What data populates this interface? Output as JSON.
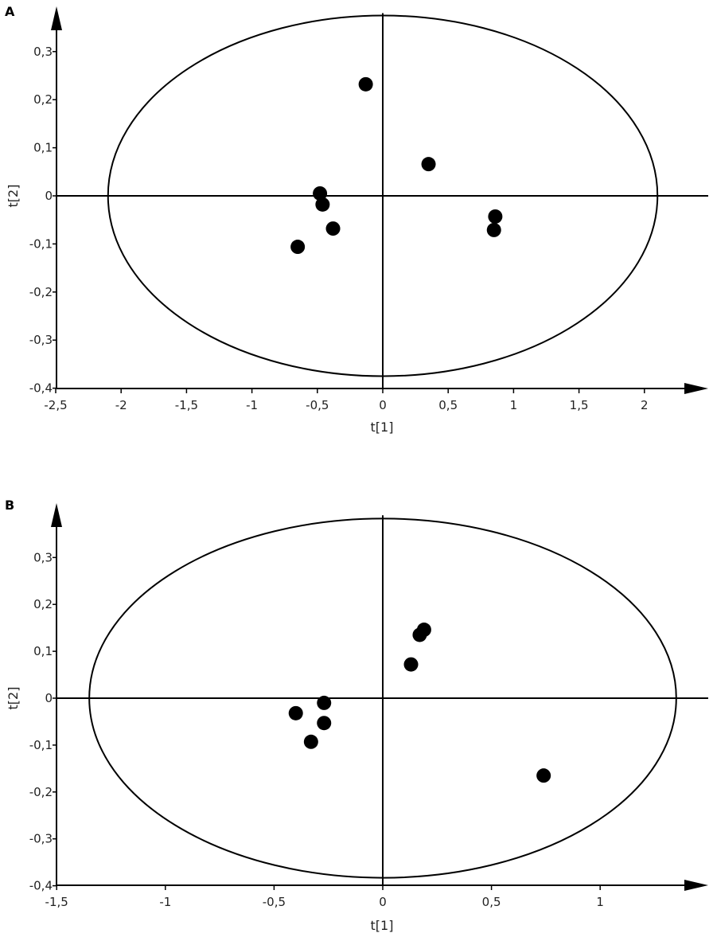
{
  "chart_data": [
    {
      "type": "scatter",
      "panel_label": "A",
      "xlabel": "t[1]",
      "ylabel": "t[2]",
      "xlim": [
        -2.5,
        2.3
      ],
      "ylim": [
        -0.4,
        0.38
      ],
      "xticks": [
        "-2,5",
        "-2",
        "-1,5",
        "-1",
        "-0,5",
        "0",
        "0,5",
        "1",
        "1,5",
        "2"
      ],
      "xtick_values": [
        -2.5,
        -2,
        -1.5,
        -1,
        -0.5,
        0,
        0.5,
        1,
        1.5,
        2
      ],
      "yticks": [
        "-0,4",
        "-0,3",
        "-0,2",
        "-0,1",
        "0",
        "0,1",
        "0,2",
        "0,3"
      ],
      "ytick_values": [
        -0.4,
        -0.3,
        -0.2,
        -0.1,
        0,
        0.1,
        0.2,
        0.3
      ],
      "ellipse": {
        "rx": 2.1,
        "ry": 0.375
      },
      "points": [
        {
          "x": -0.13,
          "y": 0.232
        },
        {
          "x": 0.35,
          "y": 0.066
        },
        {
          "x": -0.48,
          "y": 0.005
        },
        {
          "x": -0.46,
          "y": -0.018
        },
        {
          "x": -0.38,
          "y": -0.068
        },
        {
          "x": -0.65,
          "y": -0.106
        },
        {
          "x": 0.86,
          "y": -0.043
        },
        {
          "x": 0.85,
          "y": -0.071
        }
      ]
    },
    {
      "type": "scatter",
      "panel_label": "B",
      "xlabel": "t[1]",
      "ylabel": "t[2]",
      "xlim": [
        -1.5,
        1.5
      ],
      "ylim": [
        -0.4,
        0.39
      ],
      "xticks": [
        "-1,5",
        "-1",
        "-0,5",
        "0",
        "0,5",
        "1"
      ],
      "xtick_values": [
        -1.5,
        -1,
        -0.5,
        0,
        0.5,
        1
      ],
      "yticks": [
        "-0,4",
        "-0,3",
        "-0,2",
        "-0,1",
        "0",
        "0,1",
        "0,2",
        "0,3"
      ],
      "ytick_values": [
        -0.4,
        -0.3,
        -0.2,
        -0.1,
        0,
        0.1,
        0.2,
        0.3
      ],
      "ellipse": {
        "rx": 1.35,
        "ry": 0.383
      },
      "points": [
        {
          "x": 0.19,
          "y": 0.146
        },
        {
          "x": 0.17,
          "y": 0.135
        },
        {
          "x": 0.13,
          "y": 0.072
        },
        {
          "x": -0.27,
          "y": -0.01
        },
        {
          "x": -0.4,
          "y": -0.032
        },
        {
          "x": -0.27,
          "y": -0.053
        },
        {
          "x": -0.33,
          "y": -0.093
        },
        {
          "x": 0.74,
          "y": -0.165
        }
      ]
    }
  ]
}
